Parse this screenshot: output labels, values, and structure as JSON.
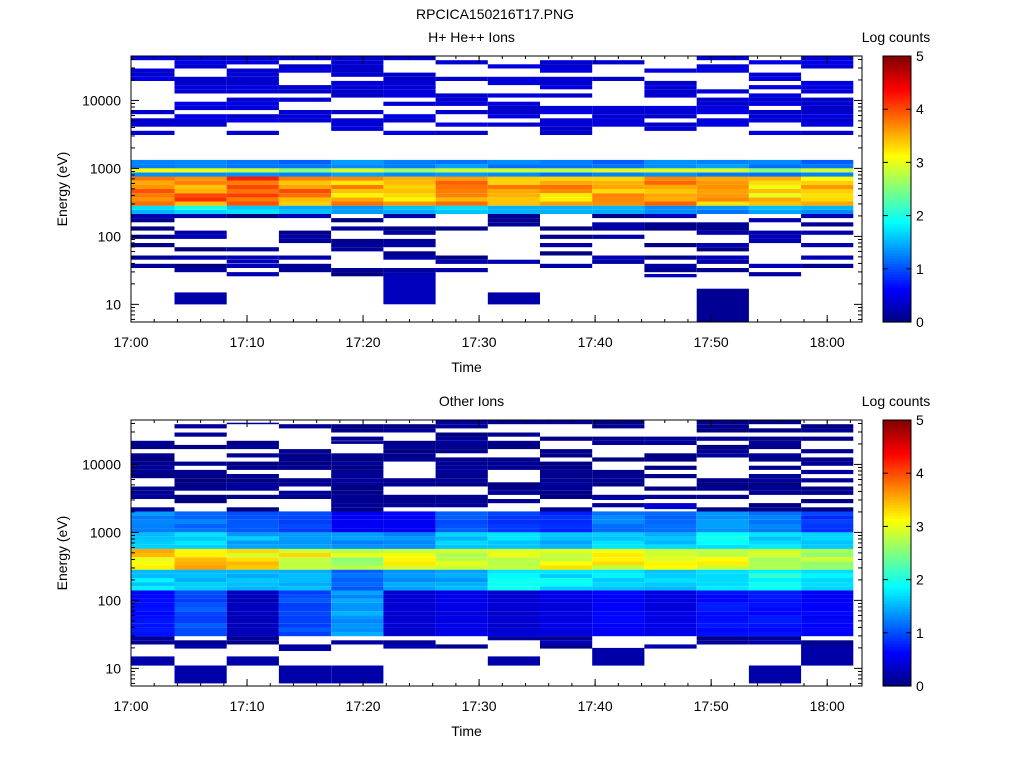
{
  "figure": {
    "title": "RPCICA150216T17.PNG"
  },
  "chart_data": [
    {
      "type": "heatmap",
      "title": "H+ He++ Ions",
      "xlabel": "Time",
      "ylabel": "Energy (eV)",
      "colorbar_label": "Log counts",
      "colormap": "jet",
      "y_scale": "log",
      "x_ticks": [
        "17:00",
        "17:10",
        "17:20",
        "17:30",
        "17:40",
        "17:50",
        "18:00"
      ],
      "y_ticks": [
        "10",
        "100",
        "1000",
        "10000"
      ],
      "y_tick_values": [
        10,
        100,
        1000,
        10000
      ],
      "colorbar_ticks": [
        "0",
        "1",
        "2",
        "3",
        "4",
        "5"
      ],
      "zlim": [
        0,
        5
      ],
      "xlim_minutes_after_1700": [
        0,
        63
      ],
      "ylim": [
        5.5,
        45000
      ],
      "time_bins": [
        "17:01:30",
        "17:06:00",
        "17:10:30",
        "17:15:00",
        "17:19:30",
        "17:24:00",
        "17:28:30",
        "17:33:00",
        "17:37:30",
        "17:42:00",
        "17:46:30",
        "17:51:00",
        "17:55:30",
        "18:00:00"
      ],
      "bands": [
        {
          "emin": 700,
          "emax": 1350,
          "profile": [
            1.3,
            1.4,
            1.3,
            1.2,
            1.3,
            1.2,
            1.3,
            1.3,
            1.2,
            1.2,
            1.3,
            1.3,
            1.2,
            1.2
          ]
        },
        {
          "emin": 850,
          "emax": 1050,
          "profile": [
            2.9,
            2.9,
            2.8,
            2.7,
            2.8,
            2.7,
            2.8,
            2.9,
            2.8,
            2.9,
            2.8,
            2.7,
            2.8,
            2.8
          ]
        },
        {
          "emin": 400,
          "emax": 650,
          "profile": [
            3.2,
            3.1,
            3.2,
            3.1,
            3.0,
            2.9,
            2.8,
            2.9,
            2.7,
            2.8,
            2.8,
            2.7,
            2.6,
            2.7
          ]
        },
        {
          "emin": 300,
          "emax": 800,
          "profile": [
            3.9,
            3.8,
            3.9,
            3.7,
            3.5,
            3.5,
            3.8,
            3.7,
            3.5,
            3.6,
            3.6,
            3.4,
            3.3,
            3.4
          ]
        },
        {
          "emin": 200,
          "emax": 300,
          "profile": [
            1.6,
            1.8,
            1.6,
            1.5,
            1.4,
            1.6,
            1.7,
            1.6,
            1.5,
            1.6,
            1.4,
            1.3,
            1.5,
            1.4
          ]
        }
      ],
      "sparse_range": [
        3000,
        45000
      ],
      "sparse_level": 0.35,
      "low_range": [
        25,
        300
      ],
      "low_level": 0.3,
      "spots": [
        {
          "bin": 1,
          "emin": 10,
          "emax": 15,
          "value": 0.2
        },
        {
          "bin": 5,
          "emin": 10,
          "emax": 27,
          "value": 0.3
        },
        {
          "bin": 7,
          "emin": 10,
          "emax": 15,
          "value": 0.2
        },
        {
          "bin": 11,
          "emin": 5.5,
          "emax": 17,
          "value": 0.1
        },
        {
          "bin": 2,
          "emin": 40,
          "emax": 45,
          "value": 0.3
        },
        {
          "bin": 10,
          "emin": 25,
          "emax": 28,
          "value": 0.3
        }
      ]
    },
    {
      "type": "heatmap",
      "title": "Other Ions",
      "xlabel": "Time",
      "ylabel": "Energy (eV)",
      "colorbar_label": "Log counts",
      "colormap": "jet",
      "y_scale": "log",
      "x_ticks": [
        "17:00",
        "17:10",
        "17:20",
        "17:30",
        "17:40",
        "17:50",
        "18:00"
      ],
      "y_ticks": [
        "10",
        "100",
        "1000",
        "10000"
      ],
      "y_tick_values": [
        10,
        100,
        1000,
        10000
      ],
      "colorbar_ticks": [
        "0",
        "1",
        "2",
        "3",
        "4",
        "5"
      ],
      "zlim": [
        0,
        5
      ],
      "xlim_minutes_after_1700": [
        0,
        63
      ],
      "ylim": [
        5.5,
        45000
      ],
      "time_bins": [
        "17:01:30",
        "17:06:00",
        "17:10:30",
        "17:15:00",
        "17:19:30",
        "17:24:00",
        "17:28:30",
        "17:33:00",
        "17:37:30",
        "17:42:00",
        "17:46:30",
        "17:51:00",
        "17:55:30",
        "18:00:00"
      ],
      "bands": [
        {
          "emin": 1000,
          "emax": 2000,
          "profile": [
            1.3,
            1.2,
            1.1,
            1.0,
            0.6,
            0.6,
            1.0,
            0.9,
            0.8,
            1.2,
            1.1,
            1.4,
            1.2,
            0.9
          ]
        },
        {
          "emin": 600,
          "emax": 1000,
          "profile": [
            1.6,
            1.7,
            1.5,
            1.4,
            1.3,
            1.3,
            1.6,
            1.6,
            1.5,
            1.7,
            1.6,
            1.8,
            1.7,
            1.6
          ]
        },
        {
          "emin": 300,
          "emax": 600,
          "profile": [
            3.3,
            3.3,
            3.2,
            3.1,
            2.8,
            3.0,
            3.0,
            2.8,
            3.0,
            3.1,
            3.0,
            3.0,
            2.7,
            2.7
          ]
        },
        {
          "emin": 150,
          "emax": 300,
          "profile": [
            1.7,
            1.6,
            1.5,
            1.5,
            1.1,
            1.4,
            1.5,
            1.8,
            1.8,
            1.7,
            1.6,
            1.7,
            2.0,
            1.8
          ]
        },
        {
          "emin": 30,
          "emax": 150,
          "profile": [
            0.7,
            1.0,
            0.3,
            1.0,
            1.4,
            0.4,
            0.5,
            0.4,
            0.5,
            0.6,
            0.5,
            0.7,
            0.7,
            0.6
          ]
        }
      ],
      "sparse_range": [
        2000,
        45000
      ],
      "sparse_level": 0.0,
      "low_range": [
        20,
        40
      ],
      "low_level": 0.3,
      "spots": [
        {
          "bin": 0,
          "emin": 11,
          "emax": 15,
          "value": 0.2
        },
        {
          "bin": 1,
          "emin": 6,
          "emax": 11,
          "value": 0.2
        },
        {
          "bin": 2,
          "emin": 11,
          "emax": 15,
          "value": 0.2
        },
        {
          "bin": 3,
          "emin": 6,
          "emax": 11,
          "value": 0.2
        },
        {
          "bin": 4,
          "emin": 6,
          "emax": 11,
          "value": 0.2
        },
        {
          "bin": 7,
          "emin": 11,
          "emax": 15,
          "value": 0.2
        },
        {
          "bin": 9,
          "emin": 11,
          "emax": 20,
          "value": 0.2
        },
        {
          "bin": 12,
          "emin": 6,
          "emax": 11,
          "value": 0.2
        },
        {
          "bin": 13,
          "emin": 11,
          "emax": 20,
          "value": 0.2
        },
        {
          "bin": 3,
          "emin": 18,
          "emax": 20,
          "value": 0.2
        },
        {
          "bin": 2,
          "emin": 39000,
          "emax": 41000,
          "value": 0.1
        },
        {
          "bin": 4,
          "emin": 20000,
          "emax": 22000,
          "value": 0.1
        },
        {
          "bin": 8,
          "emin": 4300,
          "emax": 4800,
          "value": 0.1
        },
        {
          "bin": 10,
          "emin": 2200,
          "emax": 2700,
          "value": 0.4
        },
        {
          "bin": 9,
          "emin": 3000,
          "emax": 3400,
          "value": 0.2
        }
      ]
    }
  ]
}
